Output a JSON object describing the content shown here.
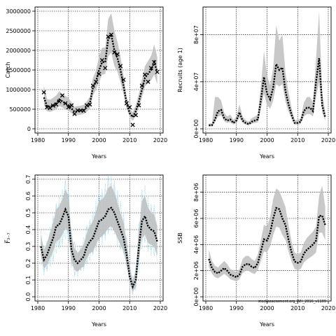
{
  "footer_note": "stockassessment.org_WH_2016_v1109",
  "colors": {
    "band": "#bebebe",
    "line": "#000000",
    "grid": "#000000",
    "sim": "#a8d8e8"
  },
  "chart_data": [
    {
      "type": "line",
      "title": "",
      "xlabel": "Years",
      "ylabel": "Catch",
      "xlim": [
        1980,
        2020
      ],
      "ylim": [
        0,
        3000000
      ],
      "xticks": [
        1980,
        1990,
        2000,
        2010,
        2020
      ],
      "xtick_labels": [
        "1980",
        "1990",
        "2000",
        "2010",
        "2020"
      ],
      "yticks": [
        0,
        500000,
        1000000,
        1500000,
        2000000,
        2500000,
        3000000
      ],
      "ytick_labels": [
        "0",
        "500000",
        "1000000",
        "1500000",
        "2000000",
        "2500000",
        "3000000"
      ],
      "ytick_rotate": false,
      "grid": true,
      "years": [
        1982,
        1983,
        1984,
        1985,
        1986,
        1987,
        1988,
        1989,
        1990,
        1991,
        1992,
        1993,
        1994,
        1995,
        1996,
        1997,
        1998,
        1999,
        2000,
        2001,
        2002,
        2003,
        2004,
        2005,
        2006,
        2007,
        2008,
        2009,
        2010,
        2011,
        2012,
        2013,
        2014,
        2015,
        2016,
        2017,
        2018,
        2019
      ],
      "estimate": [
        800000,
        580000,
        560000,
        600000,
        650000,
        750000,
        700000,
        650000,
        600000,
        520000,
        430000,
        450000,
        460000,
        480000,
        550000,
        650000,
        1050000,
        1200000,
        1500000,
        1700000,
        1700000,
        2300000,
        2400000,
        2000000,
        1800000,
        1500000,
        1100000,
        650000,
        400000,
        300000,
        450000,
        700000,
        1000000,
        1300000,
        1400000,
        1500000,
        1700000,
        1450000
      ],
      "lower": [
        620000,
        450000,
        430000,
        460000,
        500000,
        580000,
        550000,
        500000,
        460000,
        400000,
        340000,
        350000,
        360000,
        380000,
        430000,
        510000,
        850000,
        1000000,
        1200000,
        1380000,
        1400000,
        1850000,
        1950000,
        1600000,
        1450000,
        1200000,
        880000,
        520000,
        300000,
        200000,
        330000,
        540000,
        800000,
        1080000,
        1160000,
        1240000,
        1380000,
        1140000
      ],
      "upper": [
        1100000,
        760000,
        740000,
        790000,
        850000,
        960000,
        900000,
        840000,
        780000,
        680000,
        560000,
        580000,
        590000,
        610000,
        700000,
        820000,
        1300000,
        1480000,
        1850000,
        2070000,
        2070000,
        2800000,
        2950000,
        2500000,
        2220000,
        1850000,
        1360000,
        820000,
        520000,
        420000,
        600000,
        900000,
        1260000,
        1600000,
        1730000,
        1860000,
        2150000,
        1840000
      ],
      "observed_marker": "x",
      "observed": [
        930000,
        550000,
        530000,
        590000,
        620000,
        700000,
        850000,
        650000,
        550000,
        600000,
        380000,
        470000,
        470000,
        460000,
        600000,
        620000,
        1100000,
        1200000,
        1400000,
        1750000,
        1550000,
        2350000,
        2400000,
        1950000,
        1900000,
        1600000,
        1250000,
        650000,
        550000,
        100000,
        350000,
        600000,
        1100000,
        1380000,
        1200000,
        1550000,
        1700000,
        1450000
      ]
    },
    {
      "type": "line",
      "title": "",
      "xlabel": "Years",
      "ylabel": "Recruits (age 1)",
      "xlim": [
        1980,
        2020
      ],
      "ylim": [
        0,
        100000000
      ],
      "xticks": [
        1980,
        1990,
        2000,
        2010,
        2020
      ],
      "xtick_labels": [
        "1980",
        "1990",
        "2000",
        "2010",
        "2020"
      ],
      "yticks": [
        0,
        40000000,
        80000000
      ],
      "ytick_labels": [
        "0e+00",
        "4e+07",
        "8e+07"
      ],
      "ytick_rotate": true,
      "grid": true,
      "years": [
        1981,
        1982,
        1983,
        1984,
        1985,
        1986,
        1987,
        1988,
        1989,
        1990,
        1991,
        1992,
        1993,
        1994,
        1995,
        1996,
        1997,
        1998,
        1999,
        2000,
        2001,
        2002,
        2003,
        2004,
        2005,
        2006,
        2007,
        2008,
        2009,
        2010,
        2011,
        2012,
        2013,
        2014,
        2015,
        2016,
        2017,
        2018,
        2019
      ],
      "estimate": [
        3000000,
        3000000,
        8000000,
        15000000,
        16000000,
        9000000,
        7000000,
        8000000,
        5000000,
        7000000,
        14000000,
        7000000,
        5000000,
        4000000,
        6000000,
        7000000,
        8000000,
        25000000,
        44000000,
        30000000,
        25000000,
        35000000,
        55000000,
        50000000,
        52000000,
        32000000,
        21000000,
        12000000,
        5000000,
        5000000,
        6000000,
        15000000,
        18000000,
        18000000,
        15000000,
        40000000,
        60000000,
        20000000,
        10000000
      ],
      "lower": [
        2000000,
        2200000,
        5500000,
        10500000,
        11500000,
        6500000,
        5000000,
        5500000,
        3500000,
        5000000,
        9500000,
        5000000,
        3500000,
        2800000,
        4200000,
        5000000,
        5500000,
        17000000,
        30000000,
        20000000,
        17000000,
        24000000,
        38000000,
        36000000,
        38000000,
        23000000,
        15000000,
        8500000,
        3500000,
        3500000,
        4200000,
        10500000,
        12500000,
        12500000,
        10500000,
        27000000,
        40000000,
        13500000,
        7000000
      ],
      "upper": [
        4500000,
        4500000,
        27000000,
        27000000,
        24000000,
        13500000,
        10500000,
        12000000,
        7500000,
        10500000,
        21000000,
        10500000,
        7500000,
        6000000,
        9000000,
        10500000,
        12000000,
        37000000,
        66000000,
        45000000,
        37000000,
        52000000,
        88000000,
        75000000,
        80000000,
        48000000,
        31000000,
        18000000,
        7500000,
        7500000,
        9000000,
        22000000,
        27000000,
        27000000,
        22000000,
        60000000,
        100000000,
        30000000,
        15000000
      ]
    },
    {
      "type": "line",
      "title": "",
      "xlabel": "Years",
      "ylabel": "F̅₃₋₇",
      "xlim": [
        1980,
        2020
      ],
      "ylim": [
        0,
        0.7
      ],
      "xticks": [
        1980,
        1990,
        2000,
        2010,
        2020
      ],
      "xtick_labels": [
        "1980",
        "1990",
        "2000",
        "2010",
        "2020"
      ],
      "yticks": [
        0,
        0.1,
        0.2,
        0.3,
        0.4,
        0.5,
        0.6,
        0.7
      ],
      "ytick_labels": [
        "0.0",
        "0.1",
        "0.2",
        "0.3",
        "0.4",
        "0.5",
        "0.6",
        "0.7"
      ],
      "ytick_rotate": true,
      "grid": true,
      "years": [
        1981,
        1982,
        1983,
        1984,
        1985,
        1986,
        1987,
        1988,
        1989,
        1990,
        1991,
        1992,
        1993,
        1994,
        1995,
        1996,
        1997,
        1998,
        1999,
        2000,
        2001,
        2002,
        2003,
        2004,
        2005,
        2006,
        2007,
        2008,
        2009,
        2010,
        2011,
        2012,
        2013,
        2014,
        2015,
        2016,
        2017,
        2018,
        2019
      ],
      "estimate": [
        0.3,
        0.22,
        0.25,
        0.3,
        0.35,
        0.42,
        0.43,
        0.47,
        0.52,
        0.48,
        0.28,
        0.22,
        0.2,
        0.22,
        0.24,
        0.3,
        0.33,
        0.35,
        0.4,
        0.45,
        0.46,
        0.48,
        0.52,
        0.53,
        0.5,
        0.45,
        0.4,
        0.35,
        0.25,
        0.12,
        0.06,
        0.1,
        0.3,
        0.45,
        0.48,
        0.42,
        0.4,
        0.39,
        0.33
      ],
      "lower": [
        0.24,
        0.17,
        0.19,
        0.23,
        0.27,
        0.33,
        0.34,
        0.37,
        0.41,
        0.38,
        0.21,
        0.16,
        0.15,
        0.17,
        0.18,
        0.23,
        0.26,
        0.27,
        0.31,
        0.35,
        0.36,
        0.38,
        0.41,
        0.42,
        0.39,
        0.35,
        0.31,
        0.27,
        0.19,
        0.08,
        0.03,
        0.06,
        0.22,
        0.35,
        0.37,
        0.32,
        0.31,
        0.3,
        0.25
      ],
      "upper": [
        0.37,
        0.28,
        0.32,
        0.38,
        0.44,
        0.52,
        0.54,
        0.58,
        0.64,
        0.6,
        0.36,
        0.29,
        0.26,
        0.28,
        0.31,
        0.38,
        0.42,
        0.45,
        0.51,
        0.57,
        0.58,
        0.6,
        0.65,
        0.66,
        0.62,
        0.56,
        0.5,
        0.44,
        0.32,
        0.17,
        0.1,
        0.15,
        0.39,
        0.57,
        0.6,
        0.53,
        0.5,
        0.49,
        0.42
      ],
      "simulations": true
    },
    {
      "type": "line",
      "title": "",
      "xlabel": "Years",
      "ylabel": "SSB",
      "xlim": [
        1980,
        2020
      ],
      "ylim": [
        0,
        9000000
      ],
      "xticks": [
        1980,
        1990,
        2000,
        2010,
        2020
      ],
      "xtick_labels": [
        "1980",
        "1990",
        "2000",
        "2010",
        "2020"
      ],
      "yticks": [
        0,
        2000000,
        4000000,
        6000000,
        8000000
      ],
      "ytick_labels": [
        "0e+00",
        "2e+06",
        "4e+06",
        "6e+06",
        "8e+06"
      ],
      "ytick_rotate": true,
      "grid": true,
      "years": [
        1981,
        1982,
        1983,
        1984,
        1985,
        1986,
        1987,
        1988,
        1989,
        1990,
        1991,
        1992,
        1993,
        1994,
        1995,
        1996,
        1997,
        1998,
        1999,
        2000,
        2001,
        2002,
        2003,
        2004,
        2005,
        2006,
        2007,
        2008,
        2009,
        2010,
        2011,
        2012,
        2013,
        2014,
        2015,
        2016,
        2017,
        2018,
        2019
      ],
      "estimate": [
        2900000,
        2200000,
        1900000,
        1800000,
        2000000,
        2200000,
        2000000,
        1700000,
        1600000,
        1500000,
        1700000,
        2300000,
        2500000,
        2500000,
        2300000,
        2200000,
        2600000,
        3500000,
        4400000,
        4300000,
        4900000,
        6000000,
        6800000,
        6700000,
        6000000,
        5500000,
        4400000,
        3400000,
        2700000,
        2600000,
        2700000,
        3300000,
        3600000,
        3800000,
        4000000,
        4300000,
        6200000,
        6200000,
        5500000
      ],
      "lower": [
        2300000,
        1750000,
        1500000,
        1420000,
        1580000,
        1750000,
        1580000,
        1340000,
        1260000,
        1180000,
        1340000,
        1820000,
        1980000,
        1980000,
        1820000,
        1740000,
        2050000,
        2760000,
        3470000,
        3400000,
        3870000,
        4740000,
        5370000,
        5290000,
        4740000,
        4340000,
        3470000,
        2690000,
        2130000,
        2050000,
        2130000,
        2610000,
        2840000,
        3000000,
        3160000,
        3400000,
        4900000,
        4900000,
        4340000
      ],
      "upper": [
        3600000,
        2750000,
        2380000,
        2250000,
        2500000,
        2750000,
        2500000,
        2130000,
        2000000,
        1880000,
        2130000,
        2880000,
        3130000,
        3130000,
        2880000,
        2750000,
        3250000,
        4380000,
        5500000,
        5380000,
        6130000,
        7500000,
        8300000,
        8100000,
        7500000,
        6880000,
        5500000,
        4250000,
        3380000,
        3250000,
        3380000,
        4130000,
        4500000,
        4750000,
        5000000,
        5380000,
        7750000,
        8500000,
        6880000
      ]
    }
  ]
}
